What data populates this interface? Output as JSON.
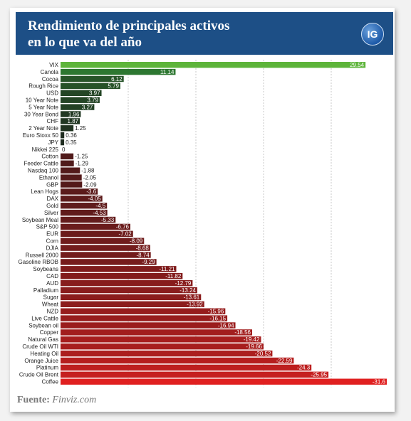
{
  "header": {
    "title_line1": "Rendimiento de principales activos",
    "title_line2": "en lo que va del año",
    "logo_text": "IG"
  },
  "source": {
    "label": "Fuente:",
    "value": "Finviz.com"
  },
  "colors": {
    "header_bg": "#1d4f86",
    "positive_strong": "#5db43a",
    "positive_mid": "#2e7d32",
    "neutral_dark": "#1f2a1f",
    "negative_dark": "#4a1a1a",
    "negative_strong": "#e02020"
  },
  "chart_data": {
    "type": "bar",
    "orientation": "horizontal",
    "grid": true,
    "categories": [
      "VIX",
      "Canola",
      "Cocoa",
      "Rough Rice",
      "USD",
      "10 Year Note",
      "5 Year Note",
      "30 Year Bond",
      "CHF",
      "2 Year Note",
      "Euro Stoxx 50",
      "JPY",
      "Nikkei 225",
      "Cotton",
      "Feeder Cattle",
      "Nasdaq 100",
      "Ethanol",
      "GBP",
      "Lean Hogs",
      "DAX",
      "Gold",
      "Silver",
      "Soybean Meal",
      "S&P 500",
      "EUR",
      "Corn",
      "DJIA",
      "Russell 2000",
      "Gasoline RBOB",
      "Soybeans",
      "CAD",
      "AUD",
      "Palladium",
      "Sugar",
      "Wheat",
      "NZD",
      "Live Cattle",
      "Soybean oil",
      "Copper",
      "Natural Gas",
      "Crude Oil WTI",
      "Heating Oil",
      "Orange Juice",
      "Platinum",
      "Crude Oil Brent",
      "Coffee"
    ],
    "values": [
      29.54,
      11.14,
      6.12,
      5.79,
      3.97,
      3.79,
      3.27,
      1.96,
      1.87,
      1.25,
      0.36,
      0.35,
      0,
      -1.25,
      -1.29,
      -1.88,
      -2.05,
      -2.09,
      -3.6,
      -4.05,
      -4.5,
      -4.53,
      -5.33,
      -6.76,
      -7.02,
      -8.09,
      -8.68,
      -8.74,
      -9.29,
      -11.21,
      -11.82,
      -12.79,
      -13.24,
      -13.61,
      -13.92,
      -15.96,
      -16.15,
      -16.94,
      -18.56,
      -19.42,
      -19.66,
      -20.52,
      -22.59,
      -24.3,
      -25.95,
      -31.6
    ],
    "labels": [
      "29.54",
      "11.14",
      "6.12",
      "5.79",
      "3.97",
      "3.79",
      "3.27",
      "1.96",
      "1.87",
      "1.25",
      "0.36",
      "0.35",
      "0",
      "-1.25",
      "-1.29",
      "-1.88",
      "-2.05",
      "-2.09",
      "-3.6",
      "-4.05",
      "-4.5",
      "-4.53",
      "-5.33",
      "-6.76",
      "-7.02",
      "-8.09",
      "-8.68",
      "-8.74",
      "-9.29",
      "-11.21",
      "-11.82",
      "-12.79",
      "-13.24",
      "-13.61",
      "-13.92",
      "-15.96",
      "-16.15",
      "-16.94",
      "-18.56",
      "-19.42",
      "-19.66",
      "-20.52",
      "-22.59",
      "-24.3",
      "-25.95",
      "-31.6"
    ]
  }
}
